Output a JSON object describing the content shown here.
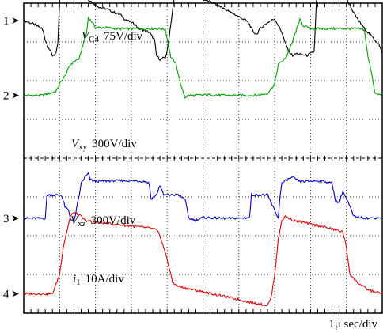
{
  "chart_data": {
    "type": "line",
    "title": "",
    "xlabel": "1μ sec/div",
    "time_per_div_us": 1,
    "divisions": {
      "horizontal": 10,
      "vertical": 8
    },
    "grid": true,
    "channels": [
      {
        "marker": "1",
        "name": "V",
        "sub": "C4",
        "scale": "75V/div",
        "color": "#000000",
        "baseline_div": 3.55
      },
      {
        "marker": "2",
        "name": "V",
        "sub": "xy",
        "scale": "300V/div",
        "color": "#00a000",
        "baseline_div": 1.62
      },
      {
        "marker": "3",
        "name": "V",
        "sub": "xz",
        "scale": "300V/div",
        "color": "#0000cc",
        "baseline_div": -1.55
      },
      {
        "marker": "4",
        "name": "i",
        "sub": "1",
        "scale": "10A/div",
        "color": "#e00000",
        "baseline_div": -3.5
      }
    ],
    "series": [
      {
        "name": "V_C4",
        "x": [
          0,
          0.1,
          0.3,
          0.5,
          0.55,
          0.6,
          0.75,
          0.8,
          0.9,
          0.95,
          1.0,
          1.25,
          1.5,
          1.65,
          1.7,
          1.8,
          1.95,
          2.1,
          2.3,
          2.5,
          2.7,
          2.8,
          2.9,
          3.0,
          3.1,
          3.2,
          3.5,
          3.65,
          3.7,
          3.8,
          3.95,
          4.0,
          4.2,
          4.25,
          4.3,
          4.5,
          4.6,
          4.8,
          5.0,
          5.3,
          5.6,
          5.8,
          6.0,
          6.2,
          6.3,
          6.35,
          6.4,
          6.5,
          6.6,
          6.8,
          7.0,
          7.2,
          7.3,
          7.4,
          7.5,
          7.6,
          7.9,
          8.1,
          8.2,
          8.25,
          8.3,
          8.5,
          8.7,
          8.9,
          9.0,
          9.1,
          9.2,
          9.3,
          9.5,
          9.7,
          9.9,
          10.0
        ],
        "y": [
          0,
          -0.03,
          -0.1,
          -0.2,
          -0.3,
          -0.5,
          -0.8,
          -0.9,
          -0.85,
          -0.6,
          0.5,
          1.1,
          0.95,
          0.8,
          0.7,
          0.55,
          0.45,
          0.35,
          0.3,
          0.22,
          0.15,
          0.05,
          0,
          -0.05,
          -0.1,
          -0.2,
          -0.3,
          -0.5,
          -0.9,
          -1.0,
          -0.95,
          -0.8,
          0.6,
          1.0,
          1.15,
          0.9,
          0.8,
          0.7,
          0.55,
          0.45,
          0.3,
          0.2,
          0.1,
          0,
          -0.1,
          -0.2,
          -0.3,
          -0.35,
          -0.2,
          -0.05,
          0.05,
          -0.3,
          -0.6,
          -0.8,
          -0.9,
          -0.85,
          -0.9,
          -0.8,
          1.2,
          1.3,
          1.2,
          0.95,
          0.8,
          0.7,
          0.55,
          0.4,
          0.2,
          0.05,
          -0.2,
          -0.4,
          -0.6,
          -0.85
        ]
      },
      {
        "name": "V_xy",
        "x": [
          0,
          0.5,
          0.7,
          0.9,
          1.0,
          1.15,
          1.3,
          1.45,
          1.55,
          1.65,
          1.75,
          1.8,
          1.9,
          2.0,
          2.3,
          2.6,
          3.0,
          3.4,
          3.6,
          3.8,
          3.95,
          4.1,
          4.25,
          4.35,
          4.4,
          4.5,
          4.6,
          4.8,
          5.2,
          5.6,
          6.0,
          6.5,
          6.8,
          7.0,
          7.1,
          7.3,
          7.5,
          7.7,
          7.8,
          8.0,
          8.5,
          9.0,
          9.3,
          9.5,
          9.6,
          9.7,
          9.8,
          10.0
        ],
        "y": [
          0,
          0,
          0.05,
          0.1,
          0.3,
          0.5,
          0.8,
          0.9,
          0.95,
          1.3,
          1.6,
          2.0,
          1.9,
          1.75,
          1.75,
          1.72,
          1.72,
          1.72,
          1.72,
          1.72,
          1.7,
          1.0,
          0.8,
          0.4,
          0.2,
          -0.05,
          0,
          0,
          0.02,
          0,
          0,
          0,
          0.05,
          0.3,
          0.8,
          0.95,
          1.4,
          1.95,
          1.8,
          1.72,
          1.72,
          1.72,
          1.72,
          1.7,
          1.0,
          0.6,
          0.05,
          0
        ]
      },
      {
        "name": "V_xz",
        "x": [
          0,
          0.6,
          0.65,
          1.05,
          1.15,
          1.25,
          1.3,
          1.4,
          1.55,
          1.6,
          1.7,
          1.8,
          1.85,
          2.0,
          2.5,
          3.0,
          3.4,
          3.5,
          3.55,
          3.7,
          3.8,
          3.9,
          4.3,
          4.5,
          4.6,
          4.8,
          5.0,
          5.5,
          6.0,
          6.3,
          6.35,
          6.8,
          6.9,
          7.0,
          7.1,
          7.15,
          7.2,
          7.35,
          7.5,
          7.7,
          7.9,
          8.2,
          8.4,
          8.6,
          8.7,
          8.8,
          8.85,
          8.9,
          9.0,
          9.1,
          9.2,
          9.6,
          10.0
        ],
        "y": [
          0,
          0,
          0.6,
          0.6,
          0.3,
          0.2,
          0,
          -0.1,
          0.6,
          0.9,
          1.05,
          1.15,
          1.0,
          0.95,
          0.97,
          0.97,
          0.95,
          0.9,
          0.5,
          0.6,
          0.85,
          0.6,
          0.6,
          0.5,
          0,
          -0.05,
          0.02,
          0,
          0,
          0.02,
          0.6,
          0.6,
          0.4,
          0.2,
          0,
          0.6,
          0.9,
          1.0,
          1.05,
          0.95,
          0.95,
          0.97,
          0.95,
          0.9,
          0.45,
          0.4,
          0.55,
          0.7,
          0.5,
          0.3,
          0.05,
          0,
          0.02
        ]
      },
      {
        "name": "i_1",
        "x": [
          0,
          0.8,
          1.0,
          1.1,
          1.2,
          1.3,
          1.4,
          1.5,
          1.6,
          1.7,
          2.0,
          2.5,
          3.0,
          3.5,
          3.7,
          3.8,
          4.0,
          4.1,
          4.15,
          4.3,
          4.5,
          5.0,
          5.5,
          6.0,
          6.5,
          6.8,
          6.9,
          7.0,
          7.1,
          7.2,
          7.3,
          7.5,
          8.0,
          8.5,
          8.7,
          8.9,
          9.0,
          9.1,
          9.3,
          9.6,
          10.0
        ],
        "y": [
          0,
          0,
          0.5,
          1.2,
          1.6,
          2.0,
          2.1,
          2.05,
          2.0,
          1.9,
          1.85,
          1.8,
          1.75,
          1.7,
          1.65,
          1.5,
          0.9,
          0.5,
          0.3,
          0.2,
          0.15,
          0.05,
          -0.05,
          -0.15,
          -0.25,
          -0.3,
          -0.1,
          0.5,
          1.4,
          1.9,
          2.0,
          1.9,
          1.8,
          1.7,
          1.65,
          1.6,
          1.2,
          0.5,
          0.3,
          0.1,
          0
        ]
      }
    ]
  }
}
